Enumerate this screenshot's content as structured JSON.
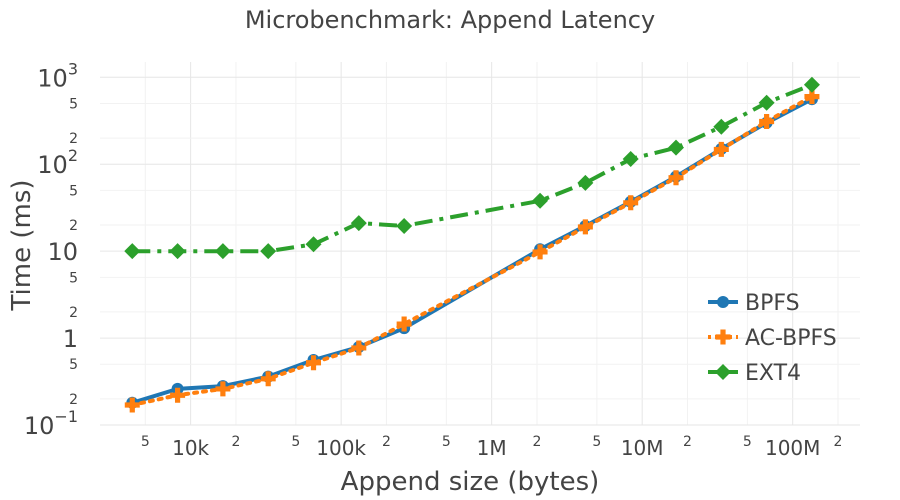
{
  "chart_data": {
    "type": "line",
    "title": "Microbenchmark: Append Latency",
    "xlabel": "Append size (bytes)",
    "ylabel": "Time (ms)",
    "xscale": "log",
    "yscale": "log",
    "xlim": [
      2500,
      280000000
    ],
    "ylim": [
      0.1,
      1500
    ],
    "grid": true,
    "legend_position": "bottom-right",
    "x_ticks": [
      {
        "value": 5000,
        "label": "5",
        "minor": true
      },
      {
        "value": 10000,
        "label": "10k",
        "minor": false
      },
      {
        "value": 20000,
        "label": "2",
        "minor": true
      },
      {
        "value": 50000,
        "label": "5",
        "minor": true
      },
      {
        "value": 100000,
        "label": "100k",
        "minor": false
      },
      {
        "value": 200000,
        "label": "2",
        "minor": true
      },
      {
        "value": 500000,
        "label": "5",
        "minor": true
      },
      {
        "value": 1000000,
        "label": "1M",
        "minor": false
      },
      {
        "value": 2000000,
        "label": "2",
        "minor": true
      },
      {
        "value": 5000000,
        "label": "5",
        "minor": true
      },
      {
        "value": 10000000,
        "label": "10M",
        "minor": false
      },
      {
        "value": 20000000,
        "label": "2",
        "minor": true
      },
      {
        "value": 50000000,
        "label": "5",
        "minor": true
      },
      {
        "value": 100000000,
        "label": "100M",
        "minor": false
      },
      {
        "value": 200000000,
        "label": "2",
        "minor": true
      }
    ],
    "y_ticks": [
      {
        "value": 0.1,
        "base": "10",
        "sup": "−1",
        "minor": false
      },
      {
        "value": 0.2,
        "base": "2",
        "sup": "",
        "minor": true
      },
      {
        "value": 0.5,
        "base": "5",
        "sup": "",
        "minor": true
      },
      {
        "value": 1,
        "base": "1",
        "sup": "",
        "minor": false
      },
      {
        "value": 2,
        "base": "2",
        "sup": "",
        "minor": true
      },
      {
        "value": 5,
        "base": "5",
        "sup": "",
        "minor": true
      },
      {
        "value": 10,
        "base": "10",
        "sup": "",
        "minor": false
      },
      {
        "value": 20,
        "base": "2",
        "sup": "",
        "minor": true
      },
      {
        "value": 50,
        "base": "5",
        "sup": "",
        "minor": true
      },
      {
        "value": 100,
        "base": "10",
        "sup": "2",
        "minor": false
      },
      {
        "value": 200,
        "base": "2",
        "sup": "",
        "minor": true
      },
      {
        "value": 500,
        "base": "5",
        "sup": "",
        "minor": true
      },
      {
        "value": 1000,
        "base": "10",
        "sup": "3",
        "minor": false
      }
    ],
    "x": [
      4096,
      8192,
      16384,
      32768,
      65536,
      131072,
      262144,
      524288,
      1048576,
      2097152,
      4194304,
      8388608,
      16777216,
      33554432,
      67108864,
      134217728
    ],
    "series": [
      {
        "name": "BPFS",
        "color": "#1f77b4",
        "marker": "circle",
        "dash": "solid",
        "values": [
          0.18,
          0.26,
          0.28,
          0.36,
          0.56,
          0.79,
          1.3,
          null,
          null,
          10.5,
          19.5,
          37,
          72,
          150,
          300,
          560
        ]
      },
      {
        "name": "AC-BPFS",
        "color": "#ff7f0e",
        "marker": "cross",
        "dash": "dot",
        "values": [
          0.17,
          0.22,
          0.26,
          0.34,
          0.52,
          0.77,
          1.45,
          null,
          null,
          9.8,
          19,
          36,
          70,
          148,
          310,
          600
        ]
      },
      {
        "name": "EXT4",
        "color": "#2ca02c",
        "marker": "diamond",
        "dash": "dashdot",
        "values": [
          10,
          10,
          10,
          10,
          12,
          21,
          19.5,
          null,
          null,
          38,
          61,
          115,
          155,
          270,
          510,
          820
        ]
      }
    ]
  }
}
